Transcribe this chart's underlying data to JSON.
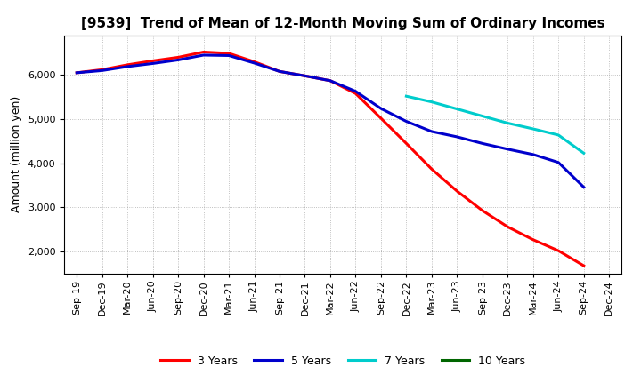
{
  "title": "[9539]  Trend of Mean of 12-Month Moving Sum of Ordinary Incomes",
  "ylabel": "Amount (million yen)",
  "x_labels": [
    "Sep-19",
    "Dec-19",
    "Mar-20",
    "Jun-20",
    "Sep-20",
    "Dec-20",
    "Mar-21",
    "Jun-21",
    "Sep-21",
    "Dec-21",
    "Mar-22",
    "Jun-22",
    "Sep-22",
    "Dec-22",
    "Mar-23",
    "Jun-23",
    "Sep-23",
    "Dec-23",
    "Mar-24",
    "Jun-24",
    "Sep-24",
    "Dec-24"
  ],
  "series": [
    {
      "name": "3 Years",
      "color": "#ff0000",
      "linewidth": 2.2,
      "data_x": [
        0,
        1,
        2,
        3,
        4,
        5,
        6,
        7,
        8,
        9,
        10,
        11,
        12,
        13,
        14,
        15,
        16,
        17,
        18,
        19,
        20
      ],
      "data_y": [
        6050,
        6120,
        6230,
        6320,
        6400,
        6520,
        6490,
        6300,
        6080,
        5980,
        5870,
        5580,
        5020,
        4450,
        3870,
        3370,
        2930,
        2560,
        2270,
        2020,
        1680
      ]
    },
    {
      "name": "5 Years",
      "color": "#0000cc",
      "linewidth": 2.2,
      "data_x": [
        0,
        1,
        2,
        3,
        4,
        5,
        6,
        7,
        8,
        9,
        10,
        11,
        12,
        13,
        14,
        15,
        16,
        17,
        18,
        19,
        20
      ],
      "data_y": [
        6050,
        6100,
        6190,
        6260,
        6340,
        6450,
        6440,
        6270,
        6080,
        5980,
        5870,
        5630,
        5240,
        4950,
        4720,
        4600,
        4450,
        4320,
        4200,
        4020,
        3460
      ]
    },
    {
      "name": "7 Years",
      "color": "#00cccc",
      "linewidth": 2.2,
      "data_x": [
        13,
        14,
        15,
        16,
        17,
        18,
        19,
        20
      ],
      "data_y": [
        5520,
        5390,
        5230,
        5070,
        4910,
        4780,
        4640,
        4230
      ]
    },
    {
      "name": "10 Years",
      "color": "#006600",
      "linewidth": 2.2,
      "data_x": [],
      "data_y": []
    }
  ],
  "ylim": [
    1500,
    6900
  ],
  "yticks": [
    2000,
    3000,
    4000,
    5000,
    6000
  ],
  "background_color": "#ffffff",
  "grid_color": "#999999",
  "title_fontsize": 11,
  "ylabel_fontsize": 9,
  "tick_fontsize": 8,
  "legend_fontsize": 9
}
